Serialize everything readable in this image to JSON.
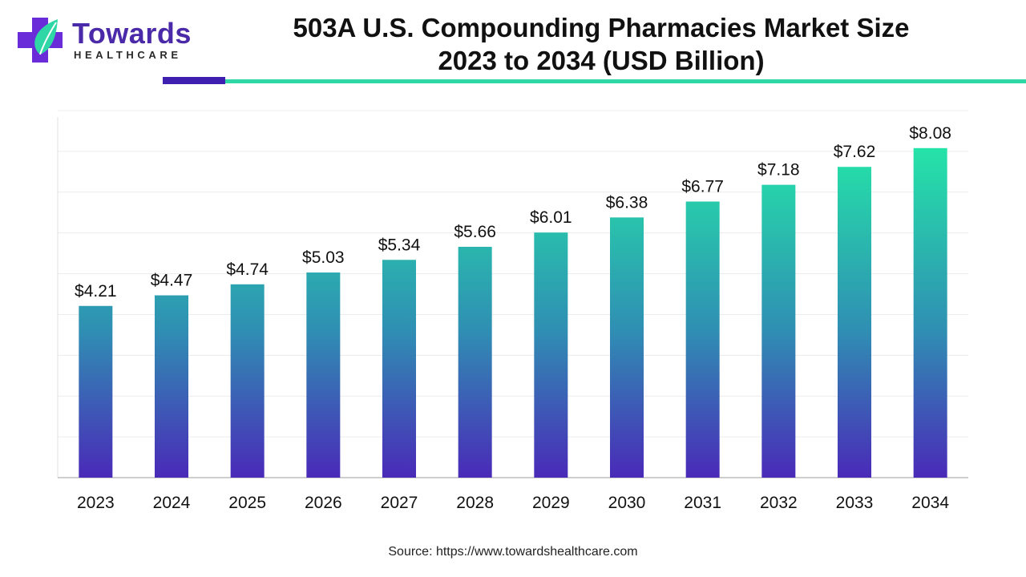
{
  "brand": {
    "name_line1": "Towards",
    "name_line2": "HEALTHCARE",
    "colors": {
      "purple": "#4a2aa8",
      "teal": "#2fd6a6"
    }
  },
  "header": {
    "title_line1": "503A U.S. Compounding Pharmacies Market Size",
    "title_line2": "2023 to 2034 (USD Billion)"
  },
  "chart_data": {
    "type": "bar",
    "title": "503A U.S. Compounding Pharmacies Market Size 2023 to 2034 (USD Billion)",
    "xlabel": "",
    "ylabel": "",
    "categories": [
      "2023",
      "2024",
      "2025",
      "2026",
      "2027",
      "2028",
      "2029",
      "2030",
      "2031",
      "2032",
      "2033",
      "2034"
    ],
    "values": [
      4.21,
      4.47,
      4.74,
      5.03,
      5.34,
      5.66,
      6.01,
      6.38,
      6.77,
      7.18,
      7.62,
      8.08
    ],
    "value_labels": [
      "$4.21",
      "$4.47",
      "$4.74",
      "$5.03",
      "$5.34",
      "$5.66",
      "$6.01",
      "$6.38",
      "$6.77",
      "$7.18",
      "$7.62",
      "$8.08"
    ],
    "ylim": [
      0,
      9
    ],
    "grid": true,
    "legend": "none",
    "bar_gradient": {
      "top": "#25e3a8",
      "middle": "#2f8fb3",
      "bottom": "#4a2ab8"
    }
  },
  "footer": {
    "source": "Source: https://www.towardshealthcare.com"
  }
}
